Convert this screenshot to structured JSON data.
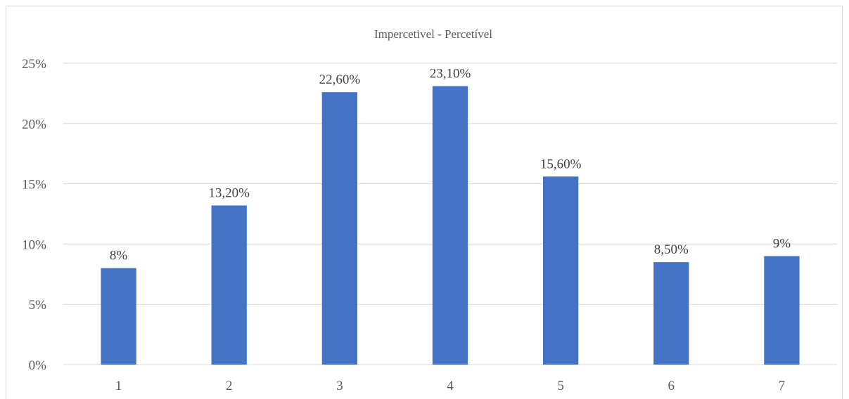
{
  "chart_data": {
    "type": "bar",
    "title": "Impercetivel - Percetível",
    "categories": [
      "1",
      "2",
      "3",
      "4",
      "5",
      "6",
      "7"
    ],
    "values": [
      8,
      13.2,
      22.6,
      23.1,
      15.6,
      8.5,
      9
    ],
    "data_labels": [
      "8%",
      "13,20%",
      "22,60%",
      "23,10%",
      "15,60%",
      "8,50%",
      "9%"
    ],
    "y_ticks": [
      "0%",
      "5%",
      "10%",
      "15%",
      "20%",
      "25%"
    ],
    "ylim": [
      0,
      25
    ],
    "y_step": 5,
    "grid": true,
    "legend": "none",
    "bar_color": "#4472c4",
    "grid_color": "#d9d9d9"
  }
}
